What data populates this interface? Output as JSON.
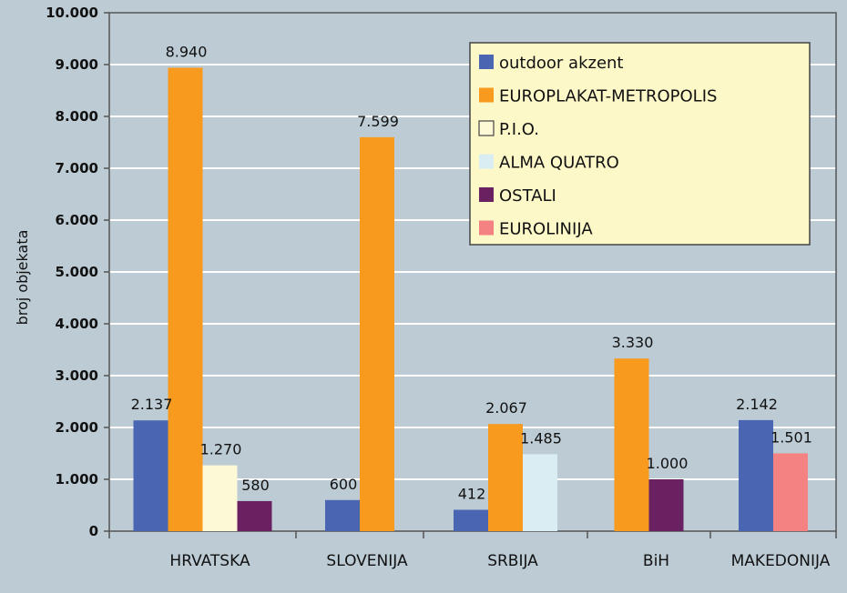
{
  "chart_data": {
    "type": "bar",
    "ylabel": "broj objekata",
    "ylim": [
      0,
      10000
    ],
    "yticks": [
      {
        "value": 0,
        "label": "0"
      },
      {
        "value": 1000,
        "label": "1.000"
      },
      {
        "value": 2000,
        "label": "2.000"
      },
      {
        "value": 3000,
        "label": "3.000"
      },
      {
        "value": 4000,
        "label": "4.000"
      },
      {
        "value": 5000,
        "label": "5.000"
      },
      {
        "value": 6000,
        "label": "6.000"
      },
      {
        "value": 7000,
        "label": "7.000"
      },
      {
        "value": 8000,
        "label": "8.000"
      },
      {
        "value": 9000,
        "label": "9.000"
      },
      {
        "value": 10000,
        "label": "10.000"
      }
    ],
    "grid": true,
    "legend_position": "top-right",
    "categories": [
      "HRVATSKA",
      "SLOVENIJA",
      "SRBIJA",
      "BiH",
      "MAKEDONIJA"
    ],
    "series": [
      {
        "name": "outdoor akzent",
        "color": "#4a66b2",
        "values": [
          2137,
          600,
          412,
          null,
          2142
        ],
        "labels": [
          "2.137",
          "600",
          "412",
          "",
          "2.142"
        ]
      },
      {
        "name": "EUROPLAKAT-METROPOLIS",
        "color": "#f79a1e",
        "values": [
          8940,
          7599,
          2067,
          3330,
          null
        ],
        "labels": [
          "8.940",
          "7.599",
          "2.067",
          "3.330",
          ""
        ]
      },
      {
        "name": "P.I.O.",
        "color": "#fdf9d6",
        "values": [
          1270,
          null,
          null,
          null,
          null
        ],
        "labels": [
          "1.270",
          "",
          "",
          "",
          ""
        ]
      },
      {
        "name": "ALMA QUATRO",
        "color": "#d9edf3",
        "values": [
          null,
          null,
          1485,
          null,
          null
        ],
        "labels": [
          "",
          "",
          "1.485",
          "",
          ""
        ]
      },
      {
        "name": "OSTALI",
        "color": "#6a2162",
        "values": [
          580,
          null,
          null,
          1000,
          null
        ],
        "labels": [
          "580",
          "",
          "",
          "1.000",
          ""
        ]
      },
      {
        "name": "EUROLINIJA",
        "color": "#f48282",
        "values": [
          null,
          null,
          null,
          null,
          1501
        ],
        "labels": [
          "",
          "",
          "",
          "",
          "1.501"
        ]
      }
    ]
  },
  "colors": {
    "background": "#bccbd4",
    "grid": "#ffffff",
    "axis": "#555555",
    "legend_background": "#fdf8c8"
  }
}
